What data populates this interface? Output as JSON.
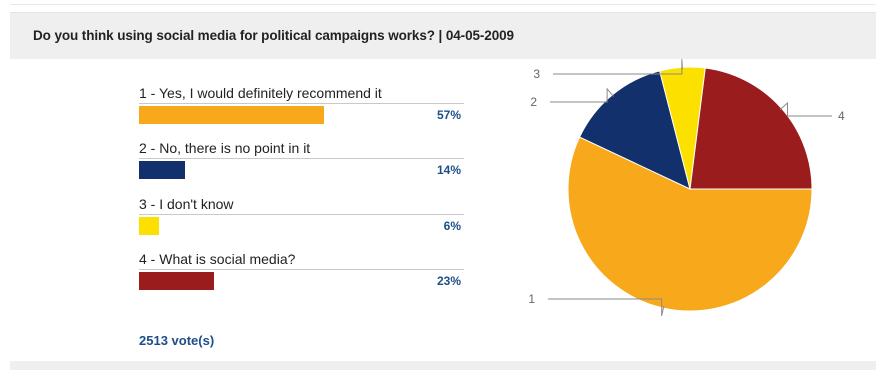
{
  "poll": {
    "title": "Do you think using social media for political campaigns works? | 04-05-2009",
    "votes_text": "2513 vote(s)"
  },
  "chart_data": {
    "type": "pie",
    "title": "Do you think using social media for political campaigns works? | 04-05-2009",
    "categories": [
      "1 - Yes, I would definitely recommend it",
      "2 - No, there is no point in it",
      "3 - I don't know",
      "4 - What is social media?"
    ],
    "values": [
      57,
      14,
      6,
      23
    ],
    "value_labels": [
      "57%",
      "14%",
      "6%",
      "23%"
    ],
    "slice_labels": [
      "1",
      "2",
      "3",
      "4"
    ],
    "colors": [
      "#F7A81B",
      "#12306B",
      "#FCE100",
      "#9B1C1C"
    ],
    "unit": "%",
    "total_votes": 2513
  }
}
